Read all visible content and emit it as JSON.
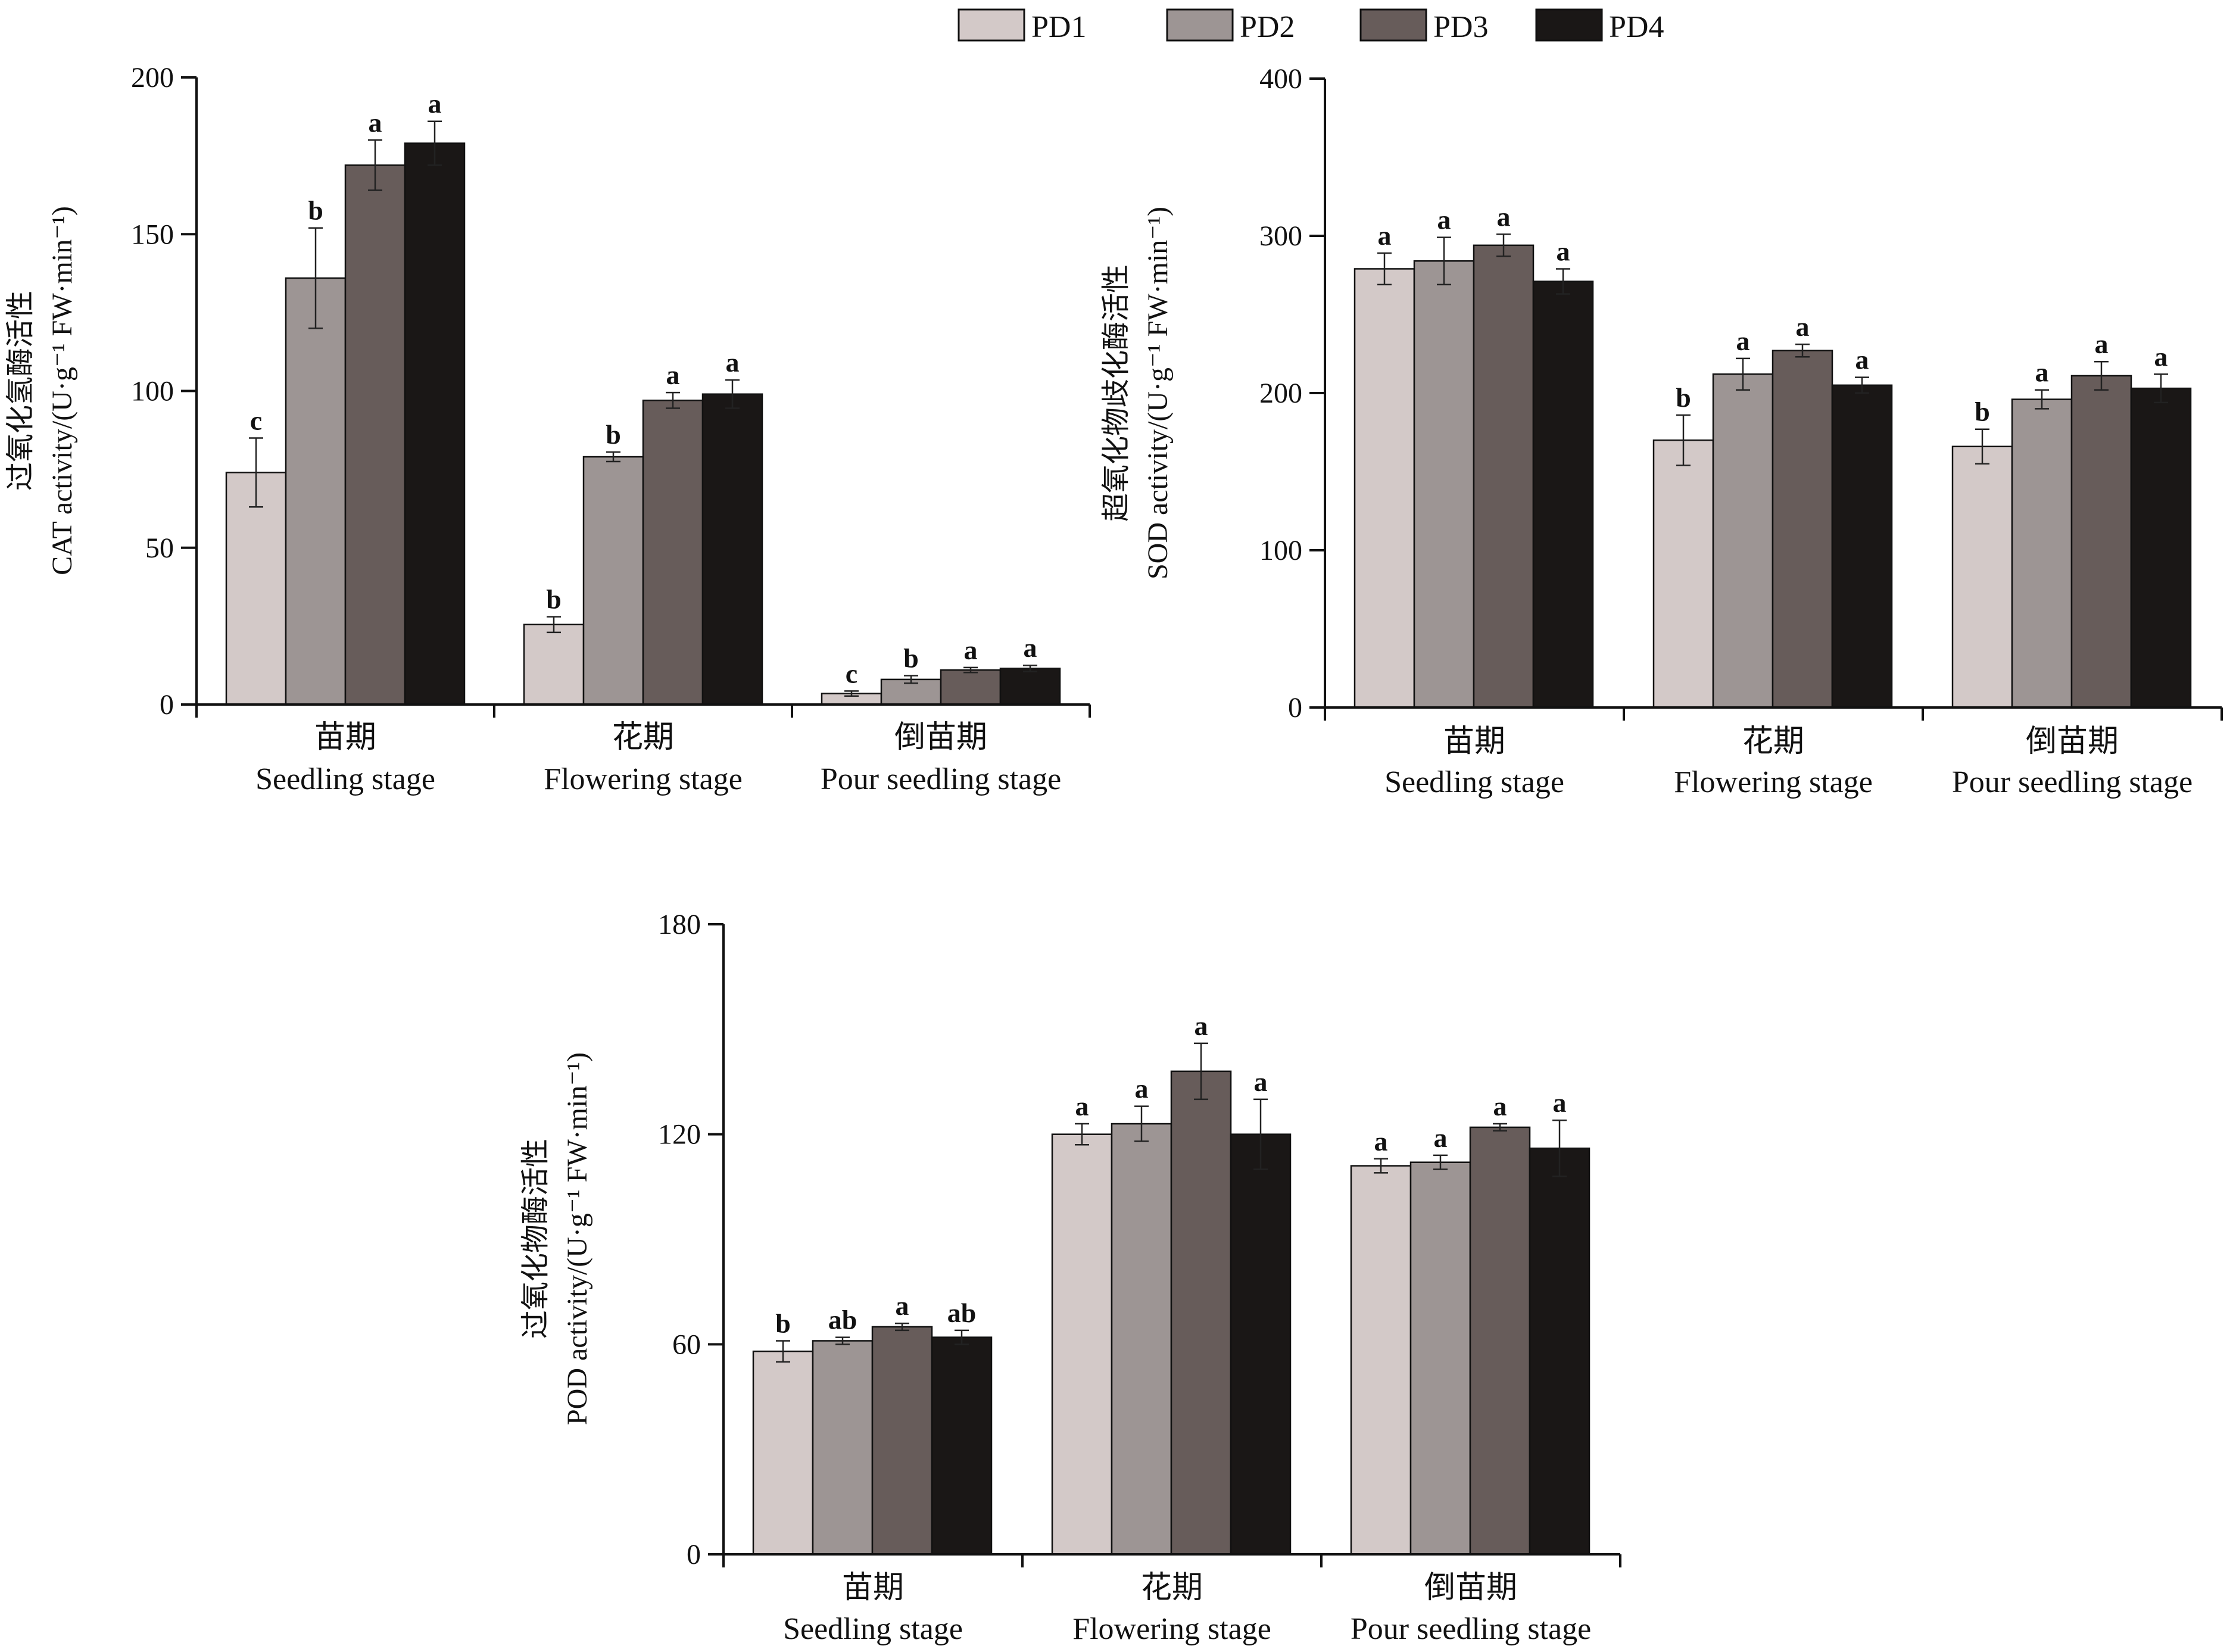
{
  "legend": [
    {
      "label": "PD1",
      "color": "#d3c9c8"
    },
    {
      "label": "PD2",
      "color": "#9d9594"
    },
    {
      "label": "PD3",
      "color": "#675c5a"
    },
    {
      "label": "PD4",
      "color": "#1a1716"
    }
  ],
  "chart_data": [
    {
      "type": "bar",
      "ylabel_cn": "过氧化氢酶活性",
      "ylabel_en": "CAT activity/(U·g⁻¹ FW·min⁻¹)",
      "ylim": [
        0,
        200
      ],
      "yticks": [
        "0",
        "50",
        "100",
        "150",
        "200"
      ],
      "categories": [
        {
          "cn": "苗期",
          "en": "Seedling stage"
        },
        {
          "cn": "花期",
          "en": "Flowering stage"
        },
        {
          "cn": "倒苗期",
          "en": "Pour seedling stage"
        }
      ],
      "series": [
        {
          "name": "PD1",
          "values": [
            74,
            25.5,
            3.5
          ],
          "errors": [
            11,
            2.5,
            0.8
          ],
          "labels": [
            "c",
            "b",
            "c"
          ]
        },
        {
          "name": "PD2",
          "values": [
            136,
            79,
            8
          ],
          "errors": [
            16,
            1.5,
            1.2
          ],
          "labels": [
            "b",
            "b",
            "b"
          ]
        },
        {
          "name": "PD3",
          "values": [
            172,
            97,
            11
          ],
          "errors": [
            8,
            2.5,
            0.8
          ],
          "labels": [
            "a",
            "a",
            "a"
          ]
        },
        {
          "name": "PD4",
          "values": [
            179,
            99,
            11.5
          ],
          "errors": [
            7,
            4.5,
            1
          ],
          "labels": [
            "a",
            "a",
            "a"
          ]
        }
      ]
    },
    {
      "type": "bar",
      "ylabel_cn": "超氧化物歧化酶活性",
      "ylabel_en": "SOD activity/(U·g⁻¹ FW·min⁻¹)",
      "ylim": [
        0,
        400
      ],
      "yticks": [
        "0",
        "100",
        "200",
        "300",
        "400"
      ],
      "categories": [
        {
          "cn": "苗期",
          "en": "Seedling stage"
        },
        {
          "cn": "花期",
          "en": "Flowering stage"
        },
        {
          "cn": "倒苗期",
          "en": "Pour seedling stage"
        }
      ],
      "series": [
        {
          "name": "PD1",
          "values": [
            279,
            170,
            166
          ],
          "errors": [
            10,
            16,
            11
          ],
          "labels": [
            "a",
            "b",
            "b"
          ]
        },
        {
          "name": "PD2",
          "values": [
            284,
            212,
            196
          ],
          "errors": [
            15,
            10,
            6
          ],
          "labels": [
            "a",
            "a",
            "a"
          ]
        },
        {
          "name": "PD3",
          "values": [
            294,
            227,
            211
          ],
          "errors": [
            7,
            4,
            9
          ],
          "labels": [
            "a",
            "a",
            "a"
          ]
        },
        {
          "name": "PD4",
          "values": [
            271,
            205,
            203
          ],
          "errors": [
            8,
            5,
            9
          ],
          "labels": [
            "a",
            "a",
            "a"
          ]
        }
      ]
    },
    {
      "type": "bar",
      "ylabel_cn": "过氧化物酶活性",
      "ylabel_en": "POD activity/(U·g⁻¹ FW·min⁻¹)",
      "ylim": [
        0,
        180
      ],
      "yticks": [
        "0",
        "60",
        "120",
        "180"
      ],
      "categories": [
        {
          "cn": "苗期",
          "en": "Seedling stage"
        },
        {
          "cn": "花期",
          "en": "Flowering stage"
        },
        {
          "cn": "倒苗期",
          "en": "Pour seedling stage"
        }
      ],
      "series": [
        {
          "name": "PD1",
          "values": [
            58,
            120,
            111
          ],
          "errors": [
            3,
            3,
            2
          ],
          "labels": [
            "b",
            "a",
            "a"
          ]
        },
        {
          "name": "PD2",
          "values": [
            61,
            123,
            112
          ],
          "errors": [
            1,
            5,
            2
          ],
          "labels": [
            "ab",
            "a",
            "a"
          ]
        },
        {
          "name": "PD3",
          "values": [
            65,
            138,
            122
          ],
          "errors": [
            1,
            8,
            1
          ],
          "labels": [
            "a",
            "a",
            "a"
          ]
        },
        {
          "name": "PD4",
          "values": [
            62,
            120,
            116
          ],
          "errors": [
            2,
            10,
            8
          ],
          "labels": [
            "ab",
            "a",
            "a"
          ]
        }
      ]
    }
  ]
}
